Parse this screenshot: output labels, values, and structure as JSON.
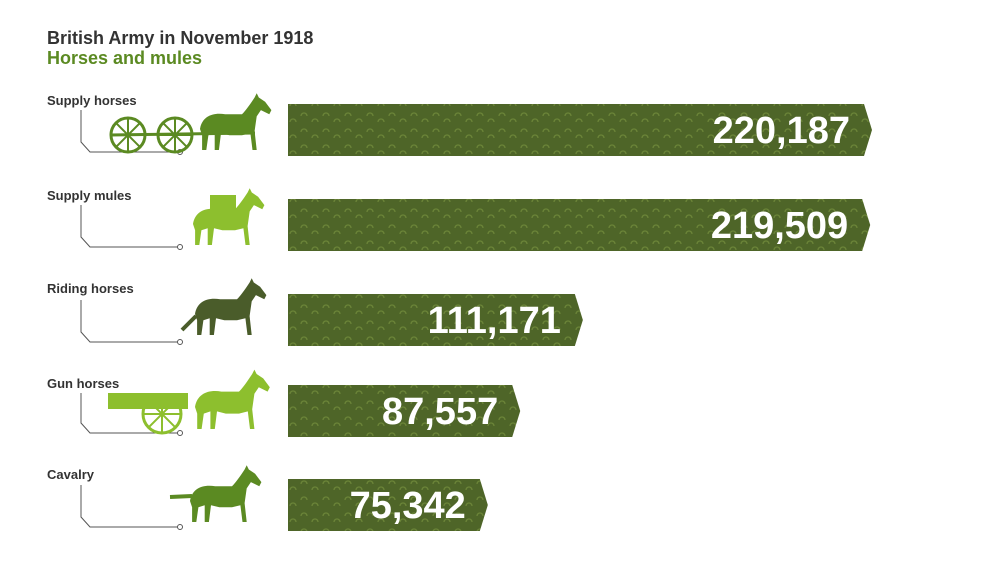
{
  "chart_data": {
    "type": "bar",
    "title": "British Army in November 1918",
    "subtitle": "Horses and mules",
    "categories": [
      "Supply horses",
      "Supply mules",
      "Riding horses",
      "Gun horses",
      "Cavalry"
    ],
    "values": [
      220187,
      219509,
      111171,
      87557,
      75342
    ],
    "value_labels": [
      "220,187",
      "219,509",
      "111,171",
      "87,557",
      "75,342"
    ],
    "icons": [
      "wagon-horse-icon",
      "pack-mule-icon",
      "riding-horse-icon",
      "gun-carriage-horse-icon",
      "galloping-horse-icon"
    ],
    "icon_colors": [
      "#5b8a22",
      "#8dbf2e",
      "#4a5c2a",
      "#8dbf2e",
      "#5b8a22"
    ],
    "bar_color": "#4e6528",
    "pattern_color": "#6b8438",
    "label_color": "#ffffff"
  }
}
